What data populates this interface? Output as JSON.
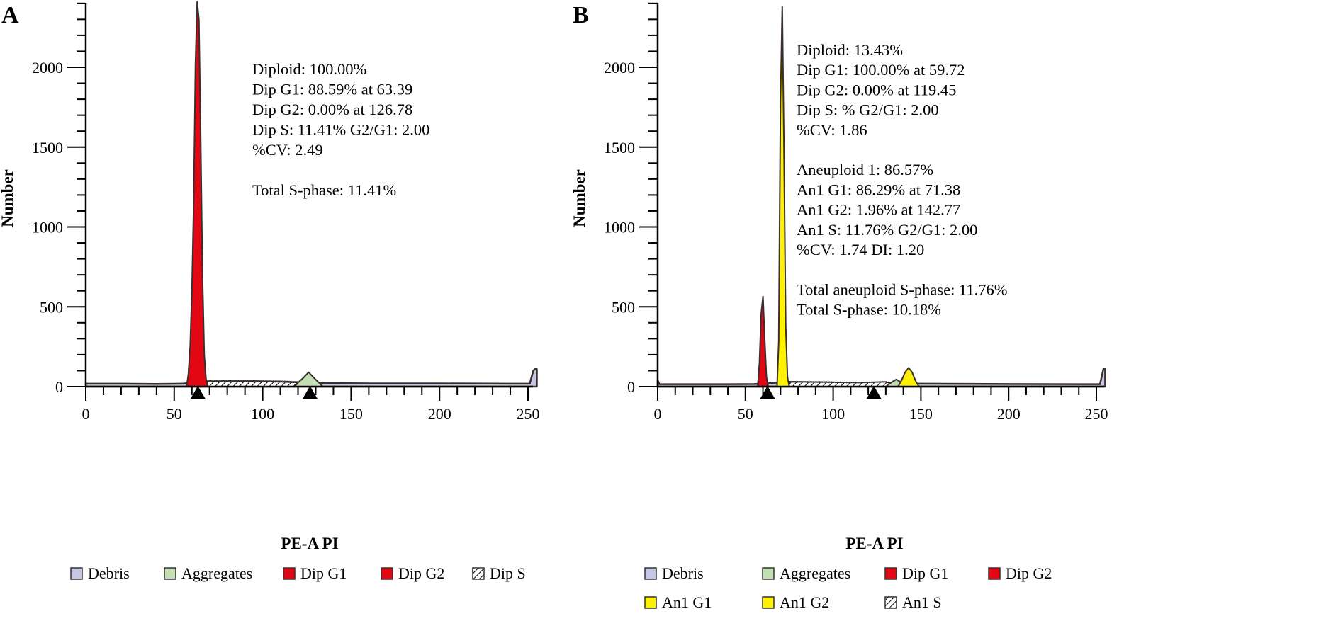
{
  "chart_data": [
    {
      "type": "area",
      "panel_label": "A",
      "xlabel": "PE-A PI",
      "ylabel": "Number",
      "xlim": [
        0,
        255
      ],
      "ylim": [
        0,
        2400
      ],
      "xticks": [
        0,
        50,
        100,
        150,
        200,
        250
      ],
      "yticks": [
        0,
        500,
        1000,
        1500,
        2000
      ],
      "xtick_labels": [
        "0",
        "50",
        "100",
        "150",
        "200",
        "250"
      ],
      "ytick_labels": [
        "0",
        "500",
        "1000",
        "1500",
        "2000"
      ],
      "peak_markers": [
        63.39,
        126.78
      ],
      "annotations": [
        "Diploid: 100.00%",
        "Dip G1: 88.59% at 63.39",
        "Dip G2: 0.00% at 126.78",
        "Dip S: 11.41% G2/G1: 2.00",
        "%CV: 2.49",
        "",
        "Total S-phase: 11.41%"
      ],
      "legend": [
        {
          "label": "Debris",
          "color": "#c4c8e4"
        },
        {
          "label": "Aggregates",
          "color": "#c2e0b4"
        },
        {
          "label": "Dip G1",
          "color": "#e30613"
        },
        {
          "label": "Dip G2",
          "color": "#e30613"
        },
        {
          "label": "Dip S",
          "color": "hatch"
        }
      ],
      "series": [
        {
          "name": "Debris",
          "color": "#c4c8e4",
          "points": [
            [
              0,
              18
            ],
            [
              20,
              18
            ],
            [
              40,
              17
            ],
            [
              55,
              18
            ],
            [
              60,
              25
            ],
            [
              70,
              32
            ],
            [
              90,
              35
            ],
            [
              110,
              32
            ],
            [
              120,
              28
            ],
            [
              135,
              22
            ],
            [
              160,
              20
            ],
            [
              200,
              20
            ],
            [
              240,
              18
            ],
            [
              251,
              18
            ],
            [
              252,
              60
            ],
            [
              253,
              100
            ],
            [
              254,
              110
            ],
            [
              255,
              110
            ]
          ]
        },
        {
          "name": "Dip S",
          "color": "hatch",
          "points": [
            [
              66,
              0
            ],
            [
              68,
              35
            ],
            [
              80,
              35
            ],
            [
              95,
              33
            ],
            [
              110,
              30
            ],
            [
              122,
              25
            ],
            [
              128,
              0
            ]
          ]
        },
        {
          "name": "Aggregates",
          "color": "#c2e0b4",
          "points": [
            [
              118,
              0
            ],
            [
              120,
              25
            ],
            [
              123,
              55
            ],
            [
              126,
              90
            ],
            [
              129,
              55
            ],
            [
              132,
              22
            ],
            [
              134,
              0
            ]
          ]
        },
        {
          "name": "Dip G1",
          "color": "#e30613",
          "points": [
            [
              57,
              0
            ],
            [
              58,
              80
            ],
            [
              59,
              250
            ],
            [
              60,
              600
            ],
            [
              61,
              1150
            ],
            [
              62,
              2020
            ],
            [
              63,
              2410
            ],
            [
              64,
              2300
            ],
            [
              65,
              1550
            ],
            [
              66,
              700
            ],
            [
              67,
              200
            ],
            [
              68,
              50
            ],
            [
              69,
              0
            ]
          ]
        }
      ]
    },
    {
      "type": "area",
      "panel_label": "B",
      "xlabel": "PE-A PI",
      "ylabel": "Number",
      "xlim": [
        0,
        255
      ],
      "ylim": [
        0,
        2400
      ],
      "xticks": [
        0,
        50,
        100,
        150,
        200,
        250
      ],
      "yticks": [
        0,
        500,
        1000,
        1500,
        2000
      ],
      "xtick_labels": [
        "0",
        "50",
        "100",
        "150",
        "200",
        "250"
      ],
      "ytick_labels": [
        "0",
        "500",
        "1000",
        "1500",
        "2000"
      ],
      "peak_markers": [
        62.6,
        123.2
      ],
      "annotations": [
        "Diploid: 13.43%",
        "Dip G1: 100.00% at 59.72",
        "Dip G2: 0.00% at 119.45",
        "Dip S: % G2/G1: 2.00",
        "%CV: 1.86",
        "",
        "Aneuploid 1: 86.57%",
        "An1 G1: 86.29% at 71.38",
        "An1 G2: 1.96% at 142.77",
        "An1 S: 11.76% G2/G1: 2.00",
        "%CV: 1.74 DI: 1.20",
        "",
        "Total aneuploid S-phase: 11.76%",
        "Total S-phase: 10.18%"
      ],
      "legend": [
        {
          "label": "Debris",
          "color": "#c4c8e4"
        },
        {
          "label": "Aggregates",
          "color": "#c2e0b4"
        },
        {
          "label": "Dip G1",
          "color": "#e30613"
        },
        {
          "label": "Dip G2",
          "color": "#e30613"
        },
        {
          "label": "An1 G1",
          "color": "#fff200"
        },
        {
          "label": "An1 G2",
          "color": "#fff200"
        },
        {
          "label": "An1 S",
          "color": "hatch"
        }
      ],
      "series": [
        {
          "name": "Debris",
          "color": "#c4c8e4",
          "points": [
            [
              0,
              40
            ],
            [
              1,
              15
            ],
            [
              20,
              15
            ],
            [
              40,
              15
            ],
            [
              55,
              16
            ],
            [
              62,
              20
            ],
            [
              75,
              30
            ],
            [
              90,
              28
            ],
            [
              110,
              25
            ],
            [
              125,
              22
            ],
            [
              150,
              18
            ],
            [
              200,
              16
            ],
            [
              240,
              15
            ],
            [
              252,
              15
            ],
            [
              253,
              60
            ],
            [
              254,
              110
            ],
            [
              255,
              110
            ]
          ]
        },
        {
          "name": "An1 S",
          "color": "hatch",
          "points": [
            [
              74,
              0
            ],
            [
              76,
              30
            ],
            [
              95,
              28
            ],
            [
              115,
              25
            ],
            [
              130,
              30
            ],
            [
              138,
              0
            ]
          ]
        },
        {
          "name": "Aggregates",
          "color": "#c2e0b4",
          "points": [
            [
              130,
              0
            ],
            [
              133,
              25
            ],
            [
              136,
              45
            ],
            [
              139,
              25
            ],
            [
              141,
              0
            ]
          ]
        },
        {
          "name": "An1 G2",
          "color": "#fff200",
          "points": [
            [
              137,
              0
            ],
            [
              139,
              40
            ],
            [
              141,
              90
            ],
            [
              143,
              118
            ],
            [
              145,
              90
            ],
            [
              147,
              35
            ],
            [
              149,
              0
            ]
          ]
        },
        {
          "name": "Dip G1",
          "color": "#e30613",
          "points": [
            [
              57,
              0
            ],
            [
              58,
              150
            ],
            [
              59,
              460
            ],
            [
              60,
              565
            ],
            [
              61,
              300
            ],
            [
              62,
              60
            ],
            [
              63,
              0
            ]
          ]
        },
        {
          "name": "An1 G1",
          "color": "#fff200",
          "points": [
            [
              68,
              0
            ],
            [
              69,
              280
            ],
            [
              70,
              1780
            ],
            [
              71,
              2380
            ],
            [
              72,
              1450
            ],
            [
              73,
              380
            ],
            [
              74,
              60
            ],
            [
              75,
              0
            ]
          ]
        }
      ]
    }
  ]
}
